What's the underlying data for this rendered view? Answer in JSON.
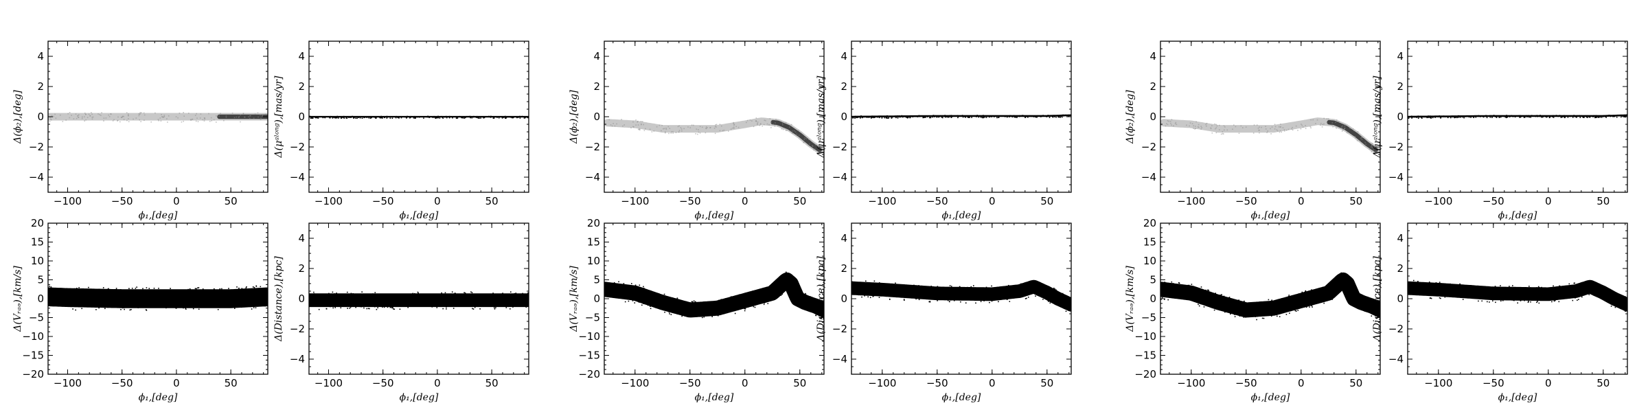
{
  "chart_data": [
    {
      "type": "scatter",
      "title": "",
      "xlabel": "ϕ₁,[deg]",
      "ylabel": "Δ(ϕ₂),[deg]",
      "xlim": [
        -118,
        84
      ],
      "ylim": [
        -5,
        5
      ],
      "xticks": [
        -100,
        -50,
        0,
        50
      ],
      "yticks": [
        -4,
        -2,
        0,
        2,
        4
      ],
      "series": [
        {
          "x": [
            -118,
            -100,
            -50,
            0,
            50,
            84
          ],
          "y": [
            0,
            0,
            0,
            0,
            0,
            0
          ],
          "spread": 0.25,
          "density": "light-to-dense"
        }
      ]
    },
    {
      "type": "scatter",
      "title": "",
      "xlabel": "ϕ₁,[deg]",
      "ylabel": "Δ(μᵃˡᵒⁿᵍ),[mas/yr]",
      "xlim": [
        -118,
        84
      ],
      "ylim": [
        -5,
        5
      ],
      "xticks": [
        -100,
        -50,
        0,
        50
      ],
      "yticks": [
        -4,
        -2,
        0,
        2,
        4
      ],
      "series": [
        {
          "x": [
            -118,
            -50,
            0,
            50,
            84
          ],
          "y": [
            0,
            0,
            0,
            0,
            0
          ],
          "spread": 0.05,
          "density": "dense"
        }
      ]
    },
    {
      "type": "scatter",
      "title": "",
      "xlabel": "ϕ₁,[deg]",
      "ylabel": "Δ(Vᵣₐₔ),[km/s]",
      "xlim": [
        -118,
        84
      ],
      "ylim": [
        -20,
        20
      ],
      "xticks": [
        -100,
        -50,
        0,
        50
      ],
      "yticks": [
        -20,
        -15,
        -10,
        -5,
        0,
        5,
        10,
        15,
        20
      ],
      "series": [
        {
          "x": [
            -118,
            -100,
            -50,
            0,
            50,
            84
          ],
          "y": [
            0.5,
            0.3,
            0,
            0,
            0,
            0.5
          ],
          "spread": 2.5,
          "density": "dense"
        }
      ]
    },
    {
      "type": "scatter",
      "title": "",
      "xlabel": "ϕ₁,[deg]",
      "ylabel": "Δ(Distance),[kpc]",
      "xlim": [
        -118,
        84
      ],
      "ylim": [
        -5,
        5
      ],
      "xticks": [
        -100,
        -50,
        0,
        50
      ],
      "yticks": [
        -4,
        -2,
        0,
        2,
        4
      ],
      "series": [
        {
          "x": [
            -118,
            -50,
            0,
            50,
            84
          ],
          "y": [
            -0.1,
            -0.1,
            -0.1,
            -0.1,
            -0.1
          ],
          "spread": 0.45,
          "density": "dense"
        }
      ]
    },
    {
      "type": "scatter",
      "title": "",
      "xlabel": "ϕ₁,[deg]",
      "ylabel": "Δ(ϕ₂),[deg]",
      "xlim": [
        -128,
        72
      ],
      "ylim": [
        -5,
        5
      ],
      "xticks": [
        -100,
        -50,
        0,
        50
      ],
      "yticks": [
        -4,
        -2,
        0,
        2,
        4
      ],
      "series": [
        {
          "x": [
            -125,
            -100,
            -75,
            -50,
            -25,
            0,
            15,
            30,
            40,
            50,
            60,
            68
          ],
          "y": [
            -0.4,
            -0.5,
            -0.8,
            -0.8,
            -0.8,
            -0.5,
            -0.3,
            -0.4,
            -0.7,
            -1.2,
            -1.8,
            -2.2
          ],
          "spread": 0.25,
          "density": "light-to-dense"
        }
      ]
    },
    {
      "type": "scatter",
      "title": "",
      "xlabel": "ϕ₁,[deg]",
      "ylabel": "Δ(μᵃˡᵒⁿᵍ),[mas/yr]",
      "xlim": [
        -128,
        72
      ],
      "ylim": [
        -5,
        5
      ],
      "xticks": [
        -100,
        -50,
        0,
        50
      ],
      "yticks": [
        -4,
        -2,
        0,
        2,
        4
      ],
      "series": [
        {
          "x": [
            -128,
            -50,
            0,
            50,
            72
          ],
          "y": [
            0,
            0.05,
            0.05,
            0.05,
            0.1
          ],
          "spread": 0.06,
          "density": "dense"
        }
      ]
    },
    {
      "type": "scatter",
      "title": "",
      "xlabel": "ϕ₁,[deg]",
      "ylabel": "Δ(Vᵣₐₔ),[km/s]",
      "xlim": [
        -128,
        72
      ],
      "ylim": [
        -20,
        20
      ],
      "xticks": [
        -100,
        -50,
        0,
        50
      ],
      "yticks": [
        -20,
        -15,
        -10,
        -5,
        0,
        5,
        10,
        15,
        20
      ],
      "series": [
        {
          "x": [
            -128,
            -100,
            -75,
            -50,
            -25,
            0,
            25,
            38,
            42,
            48,
            55,
            65,
            72
          ],
          "y": [
            2.5,
            1.5,
            -1,
            -3,
            -2.5,
            -0.5,
            1.5,
            5,
            4,
            0,
            -1,
            -2,
            -3
          ],
          "spread": 2.0,
          "density": "dense"
        }
      ]
    },
    {
      "type": "scatter",
      "title": "",
      "xlabel": "ϕ₁,[deg]",
      "ylabel": "Δ(Distance),[kpc]",
      "xlim": [
        -128,
        72
      ],
      "ylim": [
        -5,
        5
      ],
      "xticks": [
        -100,
        -50,
        0,
        50
      ],
      "yticks": [
        -4,
        -2,
        0,
        2,
        4
      ],
      "series": [
        {
          "x": [
            -128,
            -100,
            -50,
            0,
            25,
            38,
            50,
            60,
            72
          ],
          "y": [
            0.7,
            0.6,
            0.35,
            0.3,
            0.5,
            0.8,
            0.4,
            0,
            -0.4
          ],
          "spread": 0.45,
          "density": "dense"
        }
      ]
    },
    {
      "type": "scatter",
      "title": "",
      "xlabel": "ϕ₁,[deg]",
      "ylabel": "Δ(ϕ₂),[deg]",
      "xlim": [
        -128,
        72
      ],
      "ylim": [
        -5,
        5
      ],
      "xticks": [
        -100,
        -50,
        0,
        50
      ],
      "yticks": [
        -4,
        -2,
        0,
        2,
        4
      ],
      "series": [
        {
          "x": [
            -125,
            -100,
            -75,
            -50,
            -25,
            0,
            15,
            30,
            40,
            50,
            60,
            68
          ],
          "y": [
            -0.4,
            -0.5,
            -0.8,
            -0.8,
            -0.8,
            -0.5,
            -0.3,
            -0.4,
            -0.7,
            -1.2,
            -1.8,
            -2.2
          ],
          "spread": 0.25,
          "density": "light-to-dense"
        }
      ]
    },
    {
      "type": "scatter",
      "title": "",
      "xlabel": "ϕ₁,[deg]",
      "ylabel": "Δ(μᵃˡᵒⁿᵍ),[mas/yr]",
      "xlim": [
        -128,
        72
      ],
      "ylim": [
        -5,
        5
      ],
      "xticks": [
        -100,
        -50,
        0,
        50
      ],
      "yticks": [
        -4,
        -2,
        0,
        2,
        4
      ],
      "series": [
        {
          "x": [
            -128,
            -50,
            0,
            50,
            72
          ],
          "y": [
            0,
            0.05,
            0.05,
            0.05,
            0.1
          ],
          "spread": 0.06,
          "density": "dense"
        }
      ]
    },
    {
      "type": "scatter",
      "title": "",
      "xlabel": "ϕ₁,[deg]",
      "ylabel": "Δ(Vᵣₐₔ),[km/s]",
      "xlim": [
        -128,
        72
      ],
      "ylim": [
        -20,
        20
      ],
      "xticks": [
        -100,
        -50,
        0,
        50
      ],
      "yticks": [
        -20,
        -15,
        -10,
        -5,
        0,
        5,
        10,
        15,
        20
      ],
      "series": [
        {
          "x": [
            -128,
            -100,
            -75,
            -50,
            -25,
            0,
            25,
            38,
            42,
            48,
            55,
            65,
            72
          ],
          "y": [
            2.5,
            1.5,
            -1,
            -3,
            -2.5,
            -0.5,
            1.5,
            5,
            4,
            0,
            -1,
            -2,
            -3
          ],
          "spread": 2.0,
          "density": "dense"
        }
      ]
    },
    {
      "type": "scatter",
      "title": "",
      "xlabel": "ϕ₁,[deg]",
      "ylabel": "Δ(Distance),[kpc]",
      "xlim": [
        -128,
        72
      ],
      "ylim": [
        -5,
        5
      ],
      "xticks": [
        -100,
        -50,
        0,
        50
      ],
      "yticks": [
        -4,
        -2,
        0,
        2,
        4
      ],
      "series": [
        {
          "x": [
            -128,
            -100,
            -50,
            0,
            25,
            38,
            50,
            60,
            72
          ],
          "y": [
            0.7,
            0.6,
            0.35,
            0.3,
            0.5,
            0.8,
            0.4,
            0,
            -0.4
          ],
          "spread": 0.45,
          "density": "dense"
        }
      ]
    }
  ]
}
